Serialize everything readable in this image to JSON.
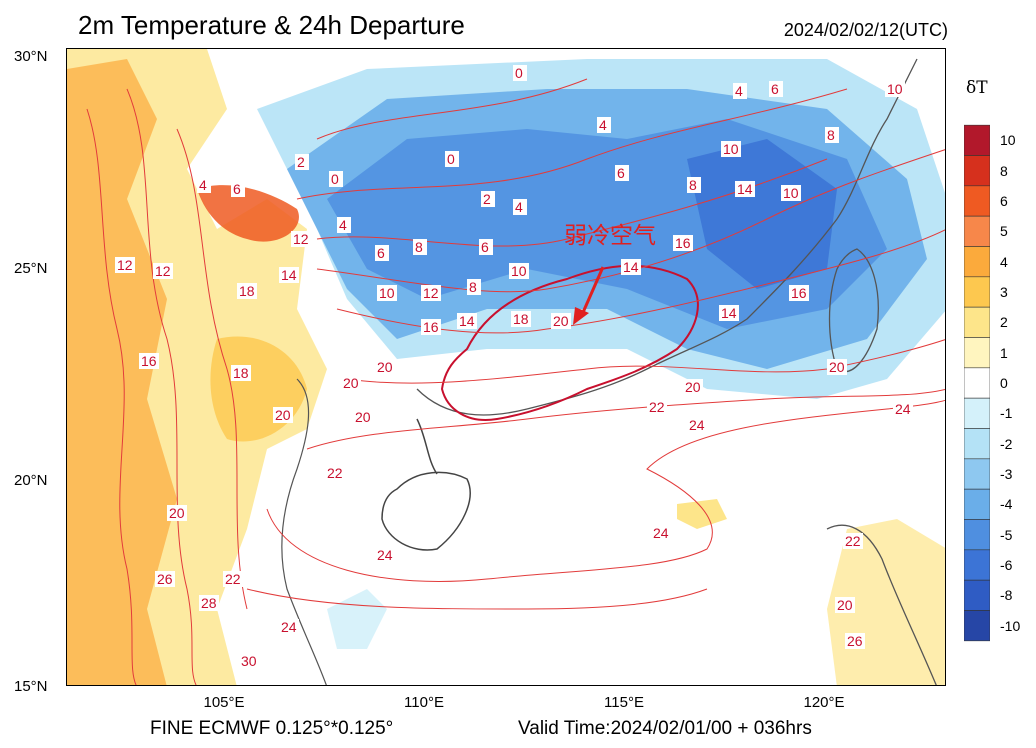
{
  "title": "2m Temperature & 24h Departure",
  "timestamp": "2024/02/02/12(UTC)",
  "footer": {
    "model": "FINE ECMWF 0.125°*0.125°",
    "valid_time": "Valid Time:2024/02/01/00 + 036hrs"
  },
  "axes": {
    "lat_labels": [
      "30°N",
      "25°N",
      "20°N",
      "15°N"
    ],
    "lon_labels": [
      "105°E",
      "110°E",
      "115°E",
      "120°E"
    ]
  },
  "colorbar": {
    "title": "δT",
    "labels": [
      "10",
      "8",
      "6",
      "5",
      "4",
      "3",
      "2",
      "1",
      "0",
      "-1",
      "-2",
      "-3",
      "-4",
      "-5",
      "-6",
      "-8",
      "-10"
    ],
    "colors": [
      "#b2182b",
      "#d6301d",
      "#ef5a22",
      "#f7874a",
      "#fbaa3c",
      "#fdc84f",
      "#fde58a",
      "#fff5bf",
      "#ffffff",
      "#d4f1fa",
      "#b4e2f6",
      "#8ec8f0",
      "#6aaee9",
      "#4f8fe0",
      "#3c74d6",
      "#2f5cc4",
      "#2646a6"
    ]
  },
  "annotation": "弱冷空气",
  "contour_labels": [
    "0",
    "2",
    "4",
    "6",
    "8",
    "10",
    "12",
    "14",
    "16",
    "18",
    "20",
    "22",
    "24",
    "26",
    "28",
    "30"
  ]
}
